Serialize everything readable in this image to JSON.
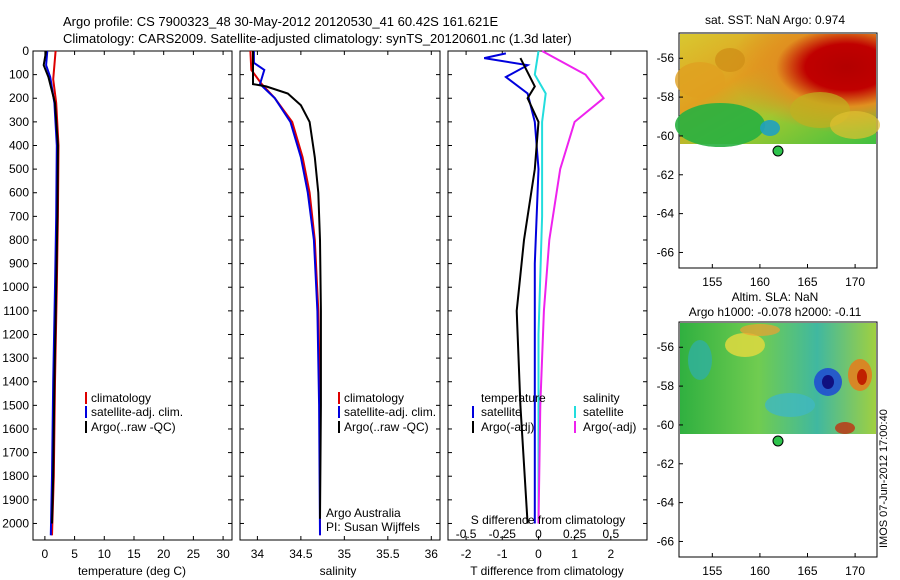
{
  "header": {
    "line1": "Argo profile: CS 7900323_48 30-May-2012 20120530_41 60.42S 161.621E",
    "line2": "Climatology: CARS2009. Satellite-adjusted climatology: synTS_20120601.nc (1.3d later)"
  },
  "side_stamp": "IMOS 07-Jun-2012 17:00:40",
  "colors": {
    "climatology": "#dd0000",
    "satellite": "#0000dd",
    "argo": "#000000",
    "sat_salinity": "#22dddd",
    "argo_salinity": "#ee22ee"
  },
  "chart_data": [
    {
      "id": "temperature",
      "type": "line",
      "xlabel": "temperature (deg C)",
      "ylabel": "",
      "xlim": [
        -2,
        31.5
      ],
      "ylim": [
        2070,
        0
      ],
      "x_ticks": [
        "0",
        "5",
        "10",
        "15",
        "20",
        "25",
        "30"
      ],
      "x_tick_values": [
        0,
        5,
        10,
        15,
        20,
        25,
        30
      ],
      "y_ticks": [
        0,
        100,
        200,
        300,
        400,
        500,
        600,
        700,
        800,
        900,
        1000,
        1100,
        1200,
        1300,
        1400,
        1500,
        1600,
        1700,
        1800,
        1900,
        2000
      ],
      "legend": [
        "climatology",
        "satellite-adj. clim.",
        "Argo(..raw -QC)"
      ],
      "series": [
        {
          "name": "climatology",
          "color": "#dd0000",
          "points": [
            [
              1.8,
              0
            ],
            [
              1.6,
              60
            ],
            [
              1.4,
              120
            ],
            [
              1.9,
              220
            ],
            [
              2.3,
              400
            ],
            [
              2.2,
              700
            ],
            [
              2.0,
              1000
            ],
            [
              1.7,
              1400
            ],
            [
              1.5,
              1800
            ],
            [
              1.2,
              2050
            ]
          ]
        },
        {
          "name": "satellite-adj. clim.",
          "color": "#0000dd",
          "points": [
            [
              0.4,
              0
            ],
            [
              0.2,
              60
            ],
            [
              0.9,
              110
            ],
            [
              1.6,
              220
            ],
            [
              2.0,
              400
            ],
            [
              1.9,
              700
            ],
            [
              1.7,
              1000
            ],
            [
              1.4,
              1400
            ],
            [
              1.2,
              1800
            ],
            [
              1.0,
              2050
            ]
          ]
        },
        {
          "name": "Argo(..raw -QC)",
          "color": "#000000",
          "points": [
            [
              0.2,
              0
            ],
            [
              -0.2,
              60
            ],
            [
              0.6,
              110
            ],
            [
              1.7,
              220
            ],
            [
              2.2,
              400
            ],
            [
              2.1,
              700
            ],
            [
              1.9,
              1000
            ],
            [
              1.6,
              1400
            ],
            [
              1.4,
              1800
            ],
            [
              1.2,
              2000
            ]
          ]
        }
      ]
    },
    {
      "id": "salinity",
      "type": "line",
      "xlabel": "salinity",
      "xlim": [
        33.8,
        36.1
      ],
      "ylim": [
        2070,
        0
      ],
      "x_ticks": [
        "34",
        "34.5",
        "35",
        "35.5",
        "36"
      ],
      "x_tick_values": [
        34,
        34.5,
        35,
        35.5,
        36
      ],
      "legend": [
        "climatology",
        "satellite-adj. clim.",
        "Argo(..raw -QC)"
      ],
      "annotation": [
        "Argo Australia",
        "PI: Susan Wijffels"
      ],
      "series": [
        {
          "name": "climatology",
          "color": "#dd0000",
          "points": [
            [
              33.92,
              0
            ],
            [
              33.93,
              80
            ],
            [
              34.05,
              140
            ],
            [
              34.2,
              200
            ],
            [
              34.4,
              300
            ],
            [
              34.52,
              450
            ],
            [
              34.6,
              600
            ],
            [
              34.66,
              800
            ],
            [
              34.7,
              1100
            ],
            [
              34.72,
              1500
            ],
            [
              34.72,
              2050
            ]
          ]
        },
        {
          "name": "satellite-adj. clim.",
          "color": "#0000dd",
          "points": [
            [
              33.96,
              0
            ],
            [
              33.96,
              50
            ],
            [
              34.08,
              80
            ],
            [
              34.03,
              140
            ],
            [
              34.2,
              200
            ],
            [
              34.38,
              300
            ],
            [
              34.5,
              450
            ],
            [
              34.58,
              600
            ],
            [
              34.65,
              800
            ],
            [
              34.69,
              1100
            ],
            [
              34.71,
              1500
            ],
            [
              34.72,
              2050
            ]
          ]
        },
        {
          "name": "Argo(..raw -QC)",
          "color": "#000000",
          "points": [
            [
              33.95,
              0
            ],
            [
              33.95,
              140
            ],
            [
              34.1,
              150
            ],
            [
              34.35,
              180
            ],
            [
              34.5,
              230
            ],
            [
              34.6,
              300
            ],
            [
              34.66,
              450
            ],
            [
              34.7,
              600
            ],
            [
              34.72,
              800
            ],
            [
              34.73,
              1100
            ],
            [
              34.73,
              1500
            ],
            [
              34.72,
              1980
            ]
          ]
        }
      ]
    },
    {
      "id": "difference",
      "type": "line",
      "xlabel": "T difference from climatology",
      "top_label": "S difference from climatology",
      "xlim": [
        -2.5,
        3
      ],
      "ylim": [
        2070,
        0
      ],
      "x_ticks": [
        "-2",
        "-1",
        "0",
        "1",
        "2"
      ],
      "x_tick_values": [
        -2,
        -1,
        0,
        1,
        2
      ],
      "top_ticks": [
        "-0.5",
        "-0.25",
        "0",
        "0.25",
        "0.5"
      ],
      "top_tick_values": [
        -0.5,
        -0.25,
        0,
        0.25,
        0.5
      ],
      "legend": {
        "temperature_heading": "temperature",
        "salinity_heading": "salinity",
        "temperature": [
          "satellite",
          "Argo(-adj)"
        ],
        "salinity": [
          "satellite",
          "Argo(-adj)"
        ]
      },
      "series": [
        {
          "name": "satellite T",
          "color": "#0000dd",
          "points": [
            [
              -0.9,
              10
            ],
            [
              -1.5,
              30
            ],
            [
              -0.3,
              60
            ],
            [
              -0.9,
              110
            ],
            [
              -0.3,
              180
            ],
            [
              -0.1,
              300
            ],
            [
              0.0,
              500
            ],
            [
              -0.1,
              900
            ],
            [
              -0.1,
              1400
            ],
            [
              -0.1,
              2000
            ]
          ]
        },
        {
          "name": "Argo T",
          "color": "#000000",
          "points": [
            [
              -0.5,
              30
            ],
            [
              -0.1,
              150
            ],
            [
              -0.3,
              200
            ],
            [
              0.0,
              300
            ],
            [
              -0.1,
              500
            ],
            [
              -0.4,
              800
            ],
            [
              -0.6,
              1100
            ],
            [
              -0.5,
              1500
            ],
            [
              -0.3,
              2000
            ]
          ]
        },
        {
          "name": "satellite S",
          "color": "#22dddd",
          "points": [
            [
              0.0,
              0
            ],
            [
              -0.1,
              100
            ],
            [
              0.2,
              180
            ],
            [
              0.1,
              300
            ],
            [
              0.1,
              700
            ],
            [
              0.0,
              1200
            ],
            [
              0.0,
              1700
            ],
            [
              0.0,
              2000
            ]
          ]
        },
        {
          "name": "Argo S",
          "color": "#ee22ee",
          "points": [
            [
              0.1,
              0
            ],
            [
              1.3,
              100
            ],
            [
              1.8,
              200
            ],
            [
              1.0,
              300
            ],
            [
              0.6,
              500
            ],
            [
              0.3,
              800
            ],
            [
              0.15,
              1100
            ],
            [
              0.05,
              1500
            ],
            [
              0.0,
              2000
            ]
          ]
        }
      ]
    }
  ],
  "maps": [
    {
      "id": "sst",
      "title": "sat. SST: NaN Argo: 0.974",
      "x_ticks": [
        "155",
        "160",
        "165",
        "170"
      ],
      "y_ticks": [
        "-56",
        "-58",
        "-60",
        "-62",
        "-64",
        "-66"
      ],
      "marker": [
        161.62,
        -60.42
      ]
    },
    {
      "id": "sla",
      "title_line1": "Altim. SLA: NaN",
      "title_line2": "Argo h1000: -0.078 h2000: -0.11",
      "x_ticks": [
        "155",
        "160",
        "165",
        "170"
      ],
      "y_ticks": [
        "-56",
        "-58",
        "-60",
        "-62",
        "-64",
        "-66"
      ],
      "marker": [
        161.62,
        -60.42
      ]
    }
  ]
}
